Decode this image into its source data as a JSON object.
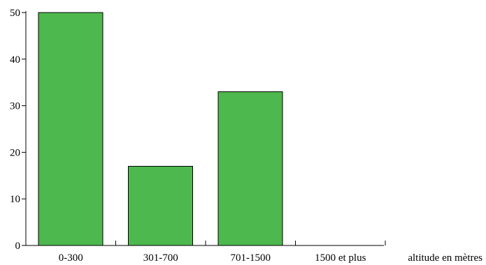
{
  "chart_data": {
    "type": "bar",
    "categories": [
      "0-300",
      "301-700",
      "701-1500",
      "1500 et plus"
    ],
    "values": [
      50,
      17,
      33,
      0
    ],
    "xlabel": "altitude en mètres",
    "ylabel": "",
    "ylim": [
      0,
      50
    ],
    "yticks": [
      0,
      10,
      20,
      30,
      40,
      50
    ],
    "grid": false,
    "colors": {
      "bar_fill": "#4db84d",
      "bar_stroke": "#000000",
      "axis": "#000000"
    }
  }
}
